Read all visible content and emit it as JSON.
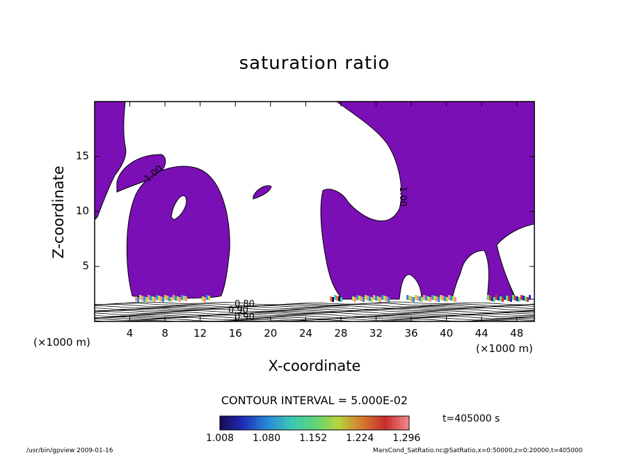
{
  "chart_data": {
    "type": "contour",
    "title": "saturation ratio",
    "xlabel": "X-coordinate",
    "ylabel": "Z-coordinate",
    "x_unit": "(×1000 m)",
    "y_unit": "(×1000 m)",
    "xlim": [
      0,
      50
    ],
    "ylim": [
      0,
      20
    ],
    "x_ticks": [
      "4",
      "8",
      "12",
      "16",
      "20",
      "24",
      "28",
      "32",
      "36",
      "40",
      "44",
      "48"
    ],
    "y_ticks": [
      "5",
      "10",
      "15"
    ],
    "contour_interval_label": "CONTOUR INTERVAL = 5.000E-02",
    "contour_labels": [
      "1.00",
      "1.00",
      "0.80",
      "0.90",
      "0.90"
    ],
    "colorbar_ticks": [
      "1.008",
      "1.080",
      "1.152",
      "1.224",
      "1.296"
    ],
    "colorbar_range": [
      1.008,
      1.3
    ],
    "time_label": "t=405000 s",
    "colors": {
      "supersaturated_fill": "#7b0fb6",
      "colorbar": [
        "#1a0a5a",
        "#2030c0",
        "#2a8fe0",
        "#40d0c0",
        "#60e080",
        "#c0e040",
        "#e08030",
        "#d03030",
        "#ff9090"
      ]
    }
  },
  "footer": {
    "left": "/usr/bin/gpview   2009-01-16",
    "right": "MarsCond_SatRatio.nc@SatRatio,x=0:50000,z=0:20000,t=405000"
  }
}
